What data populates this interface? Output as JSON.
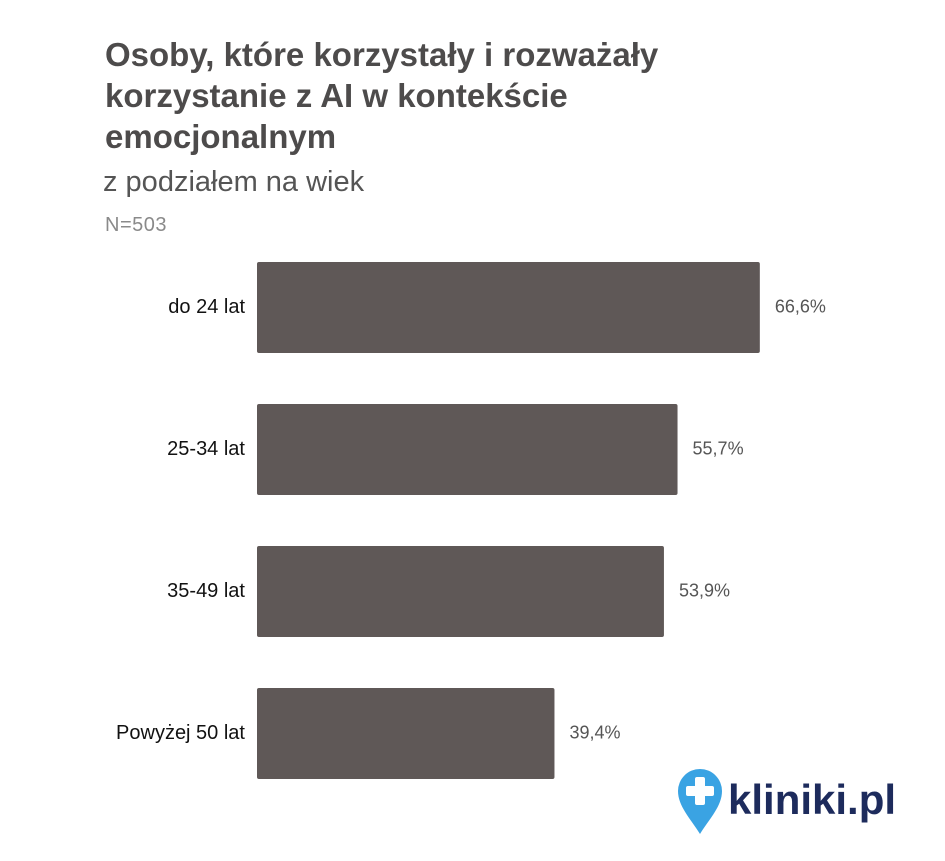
{
  "chart_data": {
    "type": "bar",
    "orientation": "horizontal",
    "title": "Osoby, które korzystały i rozważały korzystanie z AI w kontekście emocjonalnym",
    "subtitle": "z podziałem na wiek",
    "note": "N=503",
    "categories": [
      "do 24 lat",
      "25-34 lat",
      "35-49 lat",
      "Powyżej 50 lat"
    ],
    "values": [
      66.6,
      55.7,
      53.9,
      39.4
    ],
    "value_labels": [
      "66,6%",
      "55,7%",
      "53,9%",
      "39,4%"
    ],
    "color": "#5f5857"
  },
  "logo": "kliniki.pl"
}
